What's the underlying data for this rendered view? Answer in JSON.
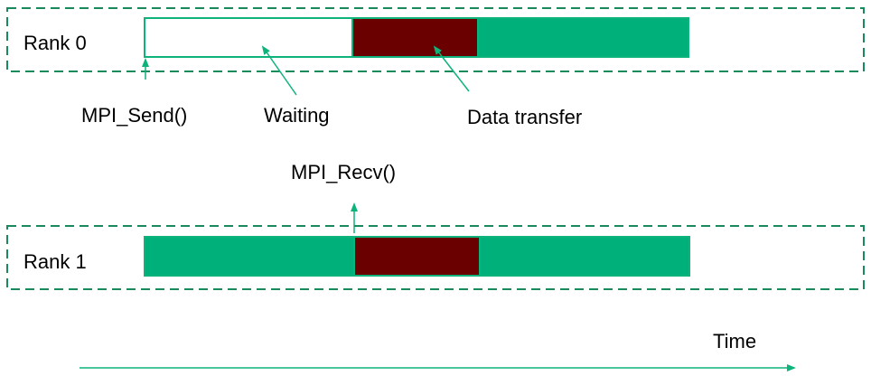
{
  "colors": {
    "accent": "#0db37a",
    "transfer": "#6b0000",
    "active": "#00b07a",
    "waiting": "#ffffff",
    "text": "#000000"
  },
  "ranks": [
    {
      "label": "Rank 0",
      "segments": [
        "waiting",
        "data-transfer",
        "active"
      ]
    },
    {
      "label": "Rank 1",
      "segments": [
        "active",
        "data-transfer",
        "active"
      ]
    }
  ],
  "annotations": {
    "mpi_send": "MPI_Send()",
    "waiting": "Waiting",
    "data_transfer": "Data transfer",
    "mpi_recv": "MPI_Recv()"
  },
  "time_axis": {
    "label": "Time"
  }
}
